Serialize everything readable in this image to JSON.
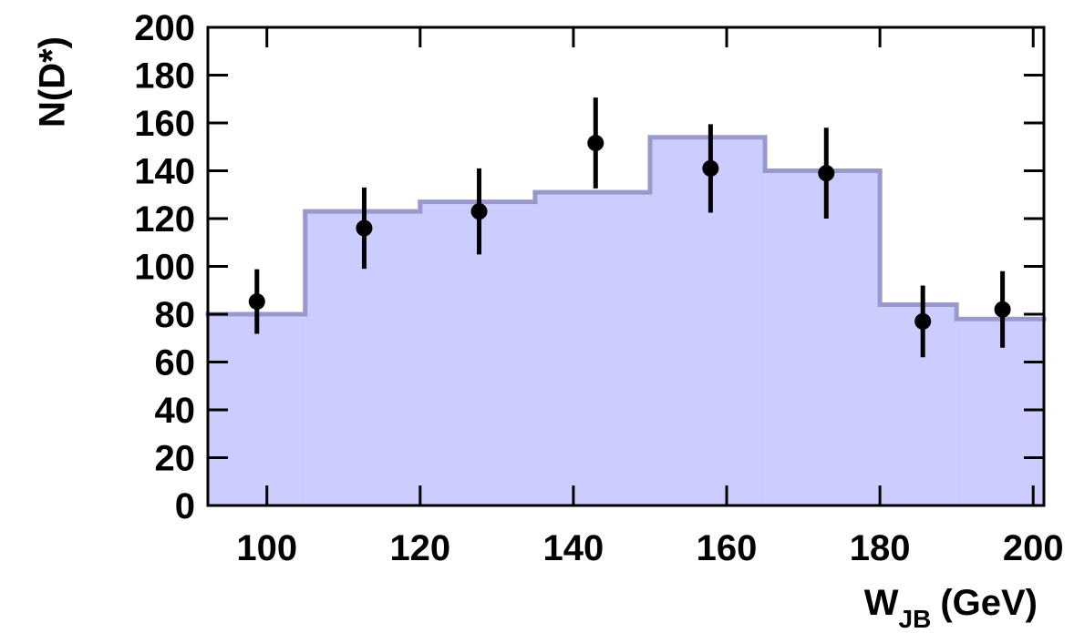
{
  "chart_data": {
    "type": "histogram",
    "ylabel": "N(D*)",
    "xlabel": "W",
    "xlabel_sub": "JB",
    "xlabel_unit": "(GeV)",
    "histogram": {
      "bins": [
        92.3,
        105,
        120,
        135,
        150,
        165,
        180,
        190,
        201.4
      ],
      "values": [
        80,
        123,
        127,
        131,
        154,
        140,
        84,
        78
      ],
      "color": "#ccccff",
      "edge_color": "#9999cc"
    },
    "points": {
      "x": [
        98.7,
        112.7,
        127.7,
        142.9,
        157.9,
        173,
        185.6,
        196
      ],
      "values": [
        85.3,
        116,
        123,
        151.6,
        141,
        139,
        77,
        82
      ],
      "errors": [
        13.5,
        17,
        18,
        19,
        18.5,
        19,
        15,
        16
      ],
      "color": "#000000"
    },
    "xlim": [
      92.3,
      201.4
    ],
    "xticks": [
      100,
      120,
      140,
      160,
      180,
      200
    ],
    "ylim": [
      0,
      200
    ],
    "yticks": [
      0,
      20,
      40,
      60,
      80,
      100,
      120,
      140,
      160,
      180,
      200
    ]
  }
}
